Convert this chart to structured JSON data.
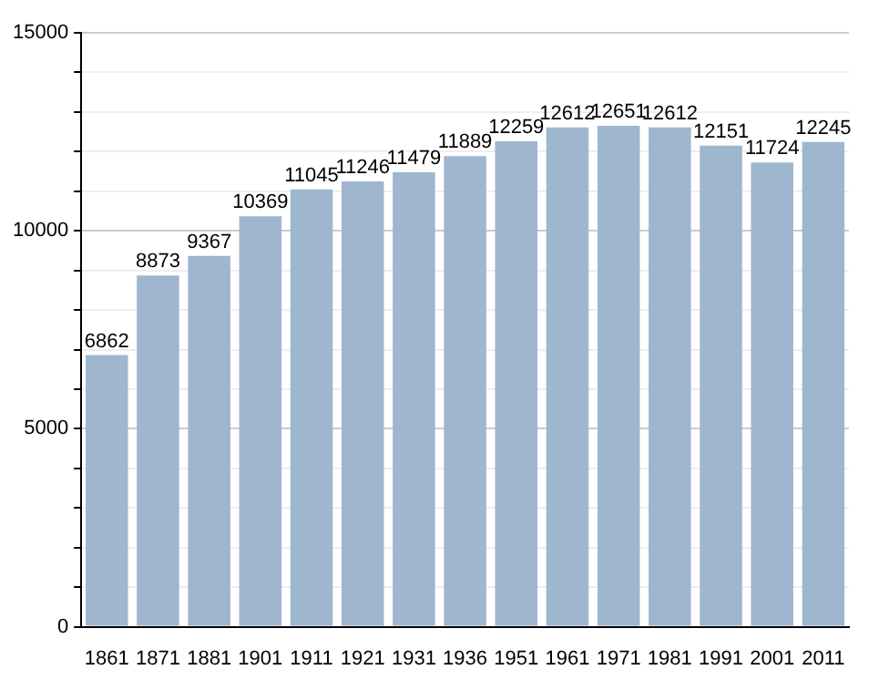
{
  "chart_data": {
    "type": "bar",
    "categories": [
      "1861",
      "1871",
      "1881",
      "1901",
      "1911",
      "1921",
      "1931",
      "1936",
      "1951",
      "1961",
      "1971",
      "1981",
      "1991",
      "2001",
      "2011"
    ],
    "values": [
      6862,
      8873,
      9367,
      10369,
      11045,
      11246,
      11479,
      11889,
      12259,
      12612,
      12651,
      12612,
      12151,
      11724,
      12245
    ],
    "color": "#9fb6cf",
    "ylim": [
      0,
      15000
    ],
    "yticks": [
      0,
      {
        "value": 1000,
        "label": null
      },
      {
        "value": 2000,
        "label": null
      },
      {
        "value": 3000,
        "label": null
      },
      {
        "value": 4000,
        "label": null
      },
      5000,
      {
        "value": 6000,
        "label": null
      },
      {
        "value": 7000,
        "label": null
      },
      {
        "value": 8000,
        "label": null
      },
      {
        "value": 9000,
        "label": null
      },
      10000,
      {
        "value": 11000,
        "label": null
      },
      {
        "value": 12000,
        "label": null
      },
      {
        "value": 13000,
        "label": null
      },
      {
        "value": 14000,
        "label": null
      },
      15000
    ],
    "grid": "y",
    "data_labels": true
  }
}
